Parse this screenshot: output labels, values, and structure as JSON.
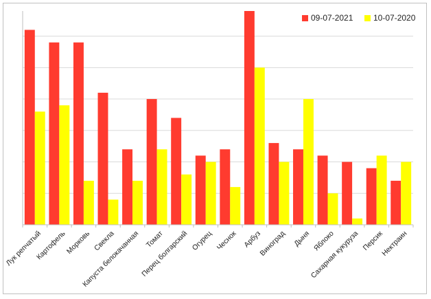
{
  "chart_data": {
    "type": "bar",
    "title": "",
    "xlabel": "",
    "ylabel": "",
    "ylim": [
      0,
      34
    ],
    "grid": true,
    "legend_position": "top-right",
    "categories": [
      "Лук репчатый",
      "Картофель",
      "Морковь",
      "Свекла",
      "Капуста белокачанная",
      "Томат",
      "Перец болгарский",
      "Огурец",
      "Чеснок",
      "Арбуз",
      "Виноград",
      "Дыня",
      "Яблоко",
      "Сахарная кукуруза",
      "Персик",
      "Нектраин"
    ],
    "series": [
      {
        "name": "09-07-2021",
        "color": "#ff3b2f",
        "values": [
          31,
          29,
          29,
          21,
          12,
          20,
          17,
          11,
          12,
          34,
          13,
          12,
          11,
          10,
          9,
          7
        ]
      },
      {
        "name": "10-07-2020",
        "color": "#ffff00",
        "values": [
          18,
          19,
          7,
          4,
          7,
          12,
          8,
          10,
          6,
          25,
          10,
          20,
          5,
          1,
          11,
          10
        ]
      }
    ]
  }
}
